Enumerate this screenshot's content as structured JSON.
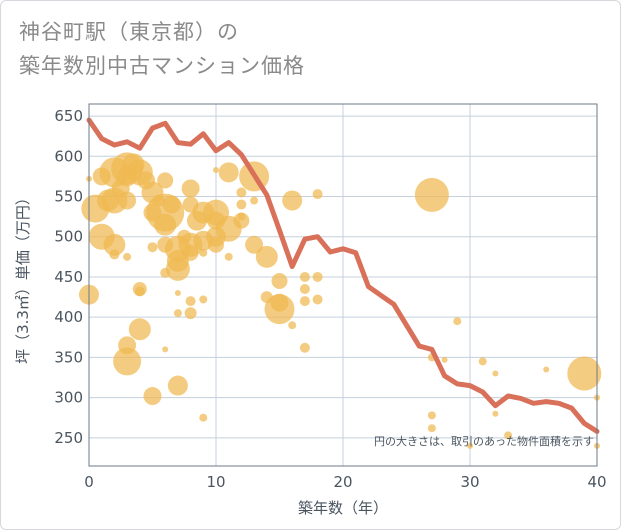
{
  "title_line1": "神谷町駅（東京都）の",
  "title_line2": "築年数別中古マンション価格",
  "chart_data": {
    "type": "scatter",
    "xlabel": "築年数（年）",
    "ylabel": "坪（3.3㎡）単価（万円）",
    "xlim": [
      0,
      40
    ],
    "ylim": [
      215,
      665
    ],
    "xticks": [
      0,
      10,
      20,
      30,
      40
    ],
    "yticks": [
      250,
      300,
      350,
      400,
      450,
      500,
      550,
      600,
      650
    ],
    "note": "円の大きさは、取引のあった物件面積を示す",
    "colors": {
      "bubble": "#f0b850",
      "line": "#d9705a",
      "grid": "#c5d0dc",
      "frame": "#6b7a88"
    },
    "points": [
      {
        "x": 0,
        "y": 572,
        "s": 3
      },
      {
        "x": 0,
        "y": 428,
        "s": 10
      },
      {
        "x": 0.5,
        "y": 535,
        "s": 14
      },
      {
        "x": 1,
        "y": 500,
        "s": 13
      },
      {
        "x": 1,
        "y": 575,
        "s": 9
      },
      {
        "x": 1.5,
        "y": 545,
        "s": 11
      },
      {
        "x": 2,
        "y": 580,
        "s": 15
      },
      {
        "x": 2,
        "y": 545,
        "s": 13
      },
      {
        "x": 2,
        "y": 490,
        "s": 11
      },
      {
        "x": 2,
        "y": 478,
        "s": 5
      },
      {
        "x": 2.5,
        "y": 560,
        "s": 9
      },
      {
        "x": 3,
        "y": 585,
        "s": 16
      },
      {
        "x": 3,
        "y": 575,
        "s": 10
      },
      {
        "x": 3,
        "y": 545,
        "s": 9
      },
      {
        "x": 3,
        "y": 475,
        "s": 4
      },
      {
        "x": 3,
        "y": 365,
        "s": 9
      },
      {
        "x": 3,
        "y": 345,
        "s": 14
      },
      {
        "x": 3.5,
        "y": 590,
        "s": 11
      },
      {
        "x": 4,
        "y": 580,
        "s": 13
      },
      {
        "x": 4,
        "y": 435,
        "s": 7
      },
      {
        "x": 4,
        "y": 432,
        "s": 5
      },
      {
        "x": 4,
        "y": 385,
        "s": 11
      },
      {
        "x": 4.5,
        "y": 570,
        "s": 9
      },
      {
        "x": 5,
        "y": 555,
        "s": 11
      },
      {
        "x": 5,
        "y": 530,
        "s": 9
      },
      {
        "x": 5,
        "y": 487,
        "s": 5
      },
      {
        "x": 5,
        "y": 302,
        "s": 9
      },
      {
        "x": 5.5,
        "y": 545,
        "s": 6
      },
      {
        "x": 6,
        "y": 570,
        "s": 8
      },
      {
        "x": 6,
        "y": 530,
        "s": 19
      },
      {
        "x": 6,
        "y": 515,
        "s": 11
      },
      {
        "x": 6,
        "y": 490,
        "s": 8
      },
      {
        "x": 6,
        "y": 455,
        "s": 5
      },
      {
        "x": 6,
        "y": 360,
        "s": 3
      },
      {
        "x": 6.5,
        "y": 540,
        "s": 9
      },
      {
        "x": 7,
        "y": 485,
        "s": 13
      },
      {
        "x": 7,
        "y": 470,
        "s": 11
      },
      {
        "x": 7,
        "y": 460,
        "s": 12
      },
      {
        "x": 7,
        "y": 430,
        "s": 3
      },
      {
        "x": 7,
        "y": 405,
        "s": 4
      },
      {
        "x": 7,
        "y": 315,
        "s": 10
      },
      {
        "x": 7.5,
        "y": 500,
        "s": 7
      },
      {
        "x": 8,
        "y": 560,
        "s": 9
      },
      {
        "x": 8,
        "y": 540,
        "s": 8
      },
      {
        "x": 8,
        "y": 490,
        "s": 12
      },
      {
        "x": 8,
        "y": 480,
        "s": 8
      },
      {
        "x": 8,
        "y": 420,
        "s": 5
      },
      {
        "x": 8,
        "y": 405,
        "s": 6
      },
      {
        "x": 8.5,
        "y": 520,
        "s": 10
      },
      {
        "x": 9,
        "y": 530,
        "s": 11
      },
      {
        "x": 9,
        "y": 495,
        "s": 10
      },
      {
        "x": 9,
        "y": 480,
        "s": 4
      },
      {
        "x": 9,
        "y": 422,
        "s": 4
      },
      {
        "x": 9,
        "y": 275,
        "s": 4
      },
      {
        "x": 10,
        "y": 530,
        "s": 13
      },
      {
        "x": 10,
        "y": 520,
        "s": 9
      },
      {
        "x": 10,
        "y": 500,
        "s": 10
      },
      {
        "x": 10,
        "y": 490,
        "s": 8
      },
      {
        "x": 10,
        "y": 583,
        "s": 3
      },
      {
        "x": 11,
        "y": 580,
        "s": 10
      },
      {
        "x": 11,
        "y": 510,
        "s": 13
      },
      {
        "x": 11,
        "y": 475,
        "s": 4
      },
      {
        "x": 12,
        "y": 555,
        "s": 5
      },
      {
        "x": 12,
        "y": 540,
        "s": 5
      },
      {
        "x": 12,
        "y": 525,
        "s": 4
      },
      {
        "x": 12,
        "y": 520,
        "s": 8
      },
      {
        "x": 13,
        "y": 575,
        "s": 15
      },
      {
        "x": 13,
        "y": 490,
        "s": 9
      },
      {
        "x": 13,
        "y": 545,
        "s": 4
      },
      {
        "x": 14,
        "y": 475,
        "s": 11
      },
      {
        "x": 14,
        "y": 425,
        "s": 6
      },
      {
        "x": 15,
        "y": 445,
        "s": 8
      },
      {
        "x": 15,
        "y": 410,
        "s": 15
      },
      {
        "x": 15,
        "y": 418,
        "s": 9
      },
      {
        "x": 16,
        "y": 545,
        "s": 10
      },
      {
        "x": 16,
        "y": 390,
        "s": 4
      },
      {
        "x": 17,
        "y": 450,
        "s": 5
      },
      {
        "x": 17,
        "y": 435,
        "s": 5
      },
      {
        "x": 17,
        "y": 420,
        "s": 5
      },
      {
        "x": 17,
        "y": 362,
        "s": 5
      },
      {
        "x": 18,
        "y": 553,
        "s": 5
      },
      {
        "x": 18,
        "y": 450,
        "s": 5
      },
      {
        "x": 18,
        "y": 422,
        "s": 5
      },
      {
        "x": 27,
        "y": 552,
        "s": 17
      },
      {
        "x": 27,
        "y": 350,
        "s": 4
      },
      {
        "x": 27,
        "y": 278,
        "s": 4
      },
      {
        "x": 27,
        "y": 262,
        "s": 4
      },
      {
        "x": 28,
        "y": 347,
        "s": 3
      },
      {
        "x": 29,
        "y": 395,
        "s": 4
      },
      {
        "x": 30,
        "y": 240,
        "s": 3
      },
      {
        "x": 31,
        "y": 345,
        "s": 4
      },
      {
        "x": 32,
        "y": 330,
        "s": 3
      },
      {
        "x": 32,
        "y": 280,
        "s": 3
      },
      {
        "x": 33,
        "y": 253,
        "s": 4
      },
      {
        "x": 36,
        "y": 335,
        "s": 3
      },
      {
        "x": 39,
        "y": 330,
        "s": 17
      },
      {
        "x": 40,
        "y": 300,
        "s": 3
      },
      {
        "x": 40,
        "y": 240,
        "s": 3
      }
    ],
    "trend": {
      "x": [
        0,
        1,
        2,
        3,
        4,
        5,
        6,
        7,
        8,
        9,
        10,
        11,
        12,
        13,
        14,
        15,
        16,
        17,
        18,
        19,
        20,
        21,
        22,
        23,
        24,
        25,
        26,
        27,
        28,
        29,
        30,
        31,
        32,
        33,
        34,
        35,
        36,
        37,
        38,
        39,
        40
      ],
      "y": [
        645,
        622,
        614,
        618,
        610,
        635,
        641,
        617,
        615,
        628,
        607,
        617,
        602,
        577,
        552,
        508,
        463,
        497,
        500,
        481,
        485,
        480,
        438,
        427,
        416,
        390,
        364,
        360,
        327,
        317,
        315,
        307,
        290,
        302,
        299,
        293,
        295,
        293,
        287,
        268,
        258
      ]
    }
  }
}
